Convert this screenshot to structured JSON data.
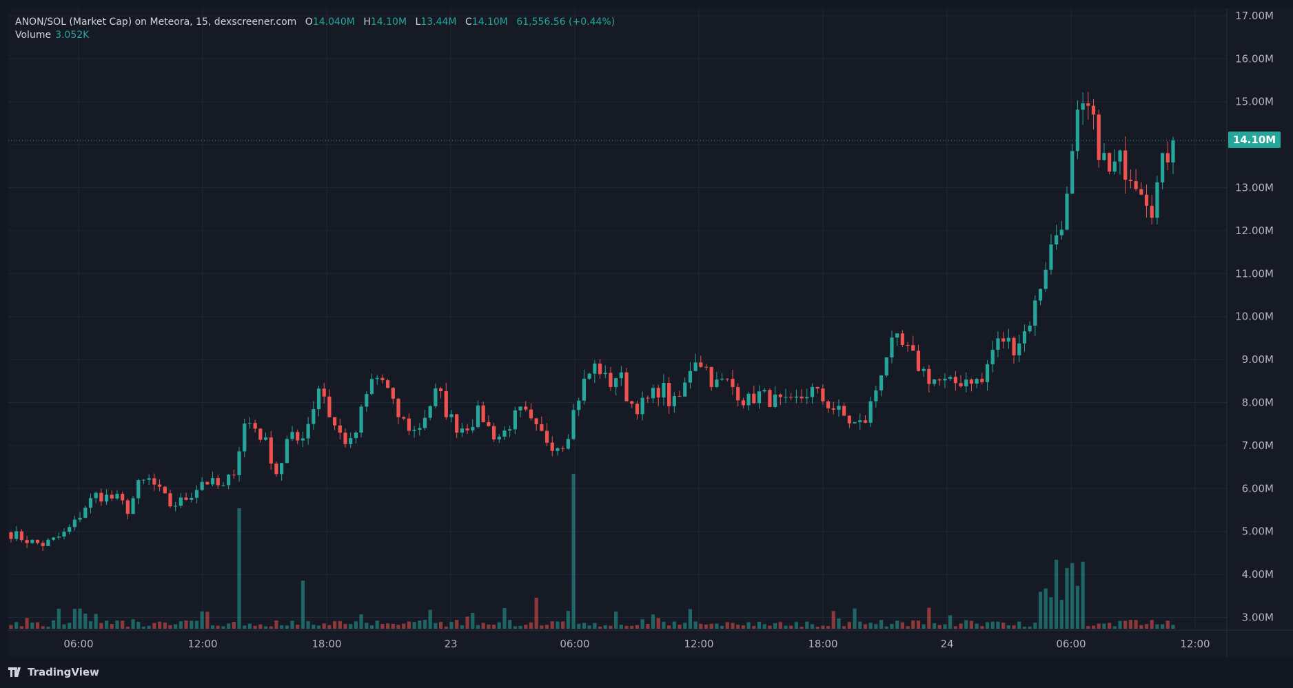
{
  "legend": {
    "title": "ANON/SOL (Market Cap) on Meteora, 15, dexscreener.com",
    "o_label": "O",
    "o_value": "14.040M",
    "h_label": "H",
    "h_value": "14.10M",
    "l_label": "L",
    "l_value": "13.44M",
    "c_label": "C",
    "c_value": "14.10M",
    "change": "61,556.56 (+0.44%)",
    "volume_label": "Volume",
    "volume_value": "3.052K"
  },
  "current_price_label": "14.10M",
  "footer": {
    "brand": "TradingView"
  },
  "colors": {
    "up": "#26a69a",
    "down": "#ef5350",
    "background": "#161a25",
    "grid": "#232735",
    "axis_text": "#b2b5be"
  },
  "chart_data": {
    "type": "candlestick",
    "y_unit": "market cap",
    "ylim": [
      2.8,
      17.0
    ],
    "y_ticks": [
      3,
      4,
      5,
      6,
      7,
      8,
      9,
      10,
      11,
      12,
      13,
      14,
      15,
      16,
      17
    ],
    "y_tick_labels": [
      "3.00M",
      "4.00M",
      "5.00M",
      "6.00M",
      "7.00M",
      "8.00M",
      "9.00M",
      "10.00M",
      "11.00M",
      "12.00M",
      "13.00M",
      "14.00M",
      "15.00M",
      "16.00M",
      "17.00M"
    ],
    "x_tick_labels": [
      "06:00",
      "12:00",
      "18:00",
      "23",
      "06:00",
      "12:00",
      "18:00",
      "24",
      "06:00",
      "12:00"
    ],
    "interval": "15",
    "grid": true,
    "last_price": 14.1,
    "close_path_M": [
      4.95,
      4.85,
      4.75,
      4.7,
      4.8,
      4.95,
      5.2,
      5.6,
      5.85,
      5.8,
      5.75,
      5.5,
      6.1,
      6.2,
      5.9,
      5.6,
      5.7,
      5.9,
      6.2,
      6.1,
      6.0,
      6.5,
      7.6,
      7.4,
      7.0,
      6.3,
      7.2,
      7.1,
      7.6,
      8.5,
      7.6,
      7.2,
      7.0,
      7.9,
      8.6,
      8.5,
      7.8,
      7.5,
      7.3,
      7.8,
      8.3,
      7.7,
      7.4,
      7.5,
      7.8,
      7.3,
      7.2,
      7.6,
      7.8,
      7.4,
      7.2,
      7.0,
      7.1,
      8.0,
      8.6,
      8.9,
      8.4,
      8.7,
      8.0,
      7.9,
      8.1,
      8.4,
      7.9,
      8.2,
      9.1,
      8.9,
      8.4,
      8.5,
      8.3,
      8.0,
      8.2,
      8.1,
      8.0,
      7.9,
      8.1,
      8.3,
      8.1,
      7.9,
      7.7,
      7.5,
      7.5,
      8.2,
      9.1,
      9.4,
      9.2,
      8.9,
      8.6,
      8.5,
      8.4,
      8.5,
      8.6,
      8.4,
      9.2,
      9.5,
      9.3,
      9.6,
      10.2,
      11.2,
      11.9,
      12.6,
      14.5,
      14.8,
      14.0,
      13.3,
      13.6,
      13.4,
      13.1,
      12.6,
      13.5,
      14.1
    ],
    "candles": 220,
    "volume_note": "volume bars colored by candle direction; notable spikes near 09:00 (day 1), 06:00 (day 23) and 06:00-07:30 (day 24)"
  }
}
